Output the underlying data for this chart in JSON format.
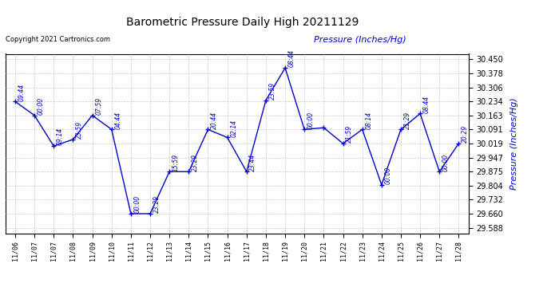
{
  "title": "Barometric Pressure Daily High 20211129",
  "ylabel": "Pressure (Inches/Hg)",
  "copyright": "Copyright 2021 Cartronics.com",
  "line_color": "#0000CC",
  "background_color": "#ffffff",
  "grid_color": "#c8c8c8",
  "ylim": [
    29.56,
    30.478
  ],
  "yticks": [
    29.588,
    29.66,
    29.732,
    29.804,
    29.875,
    29.947,
    30.019,
    30.091,
    30.163,
    30.234,
    30.306,
    30.378,
    30.45
  ],
  "data": [
    {
      "x": 0,
      "date": "11/06",
      "value": 30.234,
      "label": "09:44"
    },
    {
      "x": 1,
      "date": "11/07",
      "value": 30.163,
      "label": "00:00"
    },
    {
      "x": 2,
      "date": "11/07",
      "value": 30.006,
      "label": "09:14"
    },
    {
      "x": 3,
      "date": "11/08",
      "value": 30.04,
      "label": "23:59"
    },
    {
      "x": 4,
      "date": "11/09",
      "value": 30.163,
      "label": "07:59"
    },
    {
      "x": 5,
      "date": "11/10",
      "value": 30.091,
      "label": "04:44"
    },
    {
      "x": 6,
      "date": "11/11",
      "value": 29.66,
      "label": "00:00"
    },
    {
      "x": 7,
      "date": "11/12",
      "value": 29.66,
      "label": "23:29"
    },
    {
      "x": 8,
      "date": "11/13",
      "value": 29.875,
      "label": "15:59"
    },
    {
      "x": 9,
      "date": "11/14",
      "value": 29.875,
      "label": "23:29"
    },
    {
      "x": 10,
      "date": "11/15",
      "value": 30.091,
      "label": "20:44"
    },
    {
      "x": 11,
      "date": "11/16",
      "value": 30.05,
      "label": "02:14"
    },
    {
      "x": 12,
      "date": "11/17",
      "value": 29.875,
      "label": "23:44"
    },
    {
      "x": 13,
      "date": "11/18",
      "value": 30.24,
      "label": "23:59"
    },
    {
      "x": 14,
      "date": "11/19",
      "value": 30.406,
      "label": "08:44"
    },
    {
      "x": 15,
      "date": "11/20",
      "value": 30.091,
      "label": "00:00"
    },
    {
      "x": 16,
      "date": "11/21",
      "value": 30.1,
      "label": ""
    },
    {
      "x": 17,
      "date": "11/22",
      "value": 30.019,
      "label": "21:59"
    },
    {
      "x": 18,
      "date": "11/23",
      "value": 30.091,
      "label": "08:14"
    },
    {
      "x": 19,
      "date": "11/24",
      "value": 29.808,
      "label": "00:00"
    },
    {
      "x": 20,
      "date": "11/25",
      "value": 30.091,
      "label": "21:29"
    },
    {
      "x": 21,
      "date": "11/26",
      "value": 30.172,
      "label": "08:44"
    },
    {
      "x": 22,
      "date": "11/27",
      "value": 29.875,
      "label": "00:00"
    },
    {
      "x": 23,
      "date": "11/28",
      "value": 30.019,
      "label": "20:29"
    }
  ]
}
